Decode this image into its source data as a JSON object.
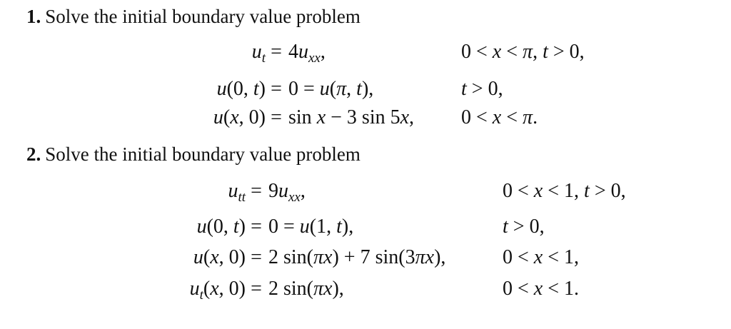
{
  "problems": [
    {
      "number": "1.",
      "title": "Solve the initial boundary value problem",
      "equals": "=",
      "rows": [
        {
          "lhs": [
            {
              "text": "u",
              "style": "i"
            },
            {
              "text": "t",
              "style": "sub"
            }
          ],
          "rhs": [
            {
              "text": "4",
              "style": "r"
            },
            {
              "text": "u",
              "style": "i"
            },
            {
              "text": "xx",
              "style": "sub"
            },
            {
              "text": ",",
              "style": "r"
            }
          ],
          "cond": [
            {
              "text": "0 < ",
              "style": "r"
            },
            {
              "text": "x",
              "style": "i"
            },
            {
              "text": " < ",
              "style": "r"
            },
            {
              "text": "π",
              "style": "i"
            },
            {
              "text": ",  ",
              "style": "r"
            },
            {
              "text": "t",
              "style": "i"
            },
            {
              "text": " > 0,",
              "style": "r"
            }
          ]
        },
        {
          "lhs": [
            {
              "text": "u",
              "style": "i"
            },
            {
              "text": "(0, ",
              "style": "r"
            },
            {
              "text": "t",
              "style": "i"
            },
            {
              "text": ")",
              "style": "r"
            }
          ],
          "rhs": [
            {
              "text": "0 = ",
              "style": "r"
            },
            {
              "text": "u",
              "style": "i"
            },
            {
              "text": "(",
              "style": "r"
            },
            {
              "text": "π",
              "style": "i"
            },
            {
              "text": ", ",
              "style": "r"
            },
            {
              "text": "t",
              "style": "i"
            },
            {
              "text": "),",
              "style": "r"
            }
          ],
          "cond": [
            {
              "text": "t",
              "style": "i"
            },
            {
              "text": " > 0,",
              "style": "r"
            }
          ]
        },
        {
          "lhs": [
            {
              "text": "u",
              "style": "i"
            },
            {
              "text": "(",
              "style": "r"
            },
            {
              "text": "x",
              "style": "i"
            },
            {
              "text": ", 0)",
              "style": "r"
            }
          ],
          "rhs": [
            {
              "text": "sin ",
              "style": "r"
            },
            {
              "text": "x",
              "style": "i"
            },
            {
              "text": " − 3 sin 5",
              "style": "r"
            },
            {
              "text": "x",
              "style": "i"
            },
            {
              "text": ",",
              "style": "r"
            }
          ],
          "cond": [
            {
              "text": "0 < ",
              "style": "r"
            },
            {
              "text": "x",
              "style": "i"
            },
            {
              "text": " < ",
              "style": "r"
            },
            {
              "text": "π",
              "style": "i"
            },
            {
              "text": ".",
              "style": "r"
            }
          ]
        }
      ]
    },
    {
      "number": "2.",
      "title": "Solve the initial boundary value problem",
      "equals": "=",
      "rows": [
        {
          "lhs": [
            {
              "text": "u",
              "style": "i"
            },
            {
              "text": "tt",
              "style": "sub"
            }
          ],
          "rhs": [
            {
              "text": "9",
              "style": "r"
            },
            {
              "text": "u",
              "style": "i"
            },
            {
              "text": "xx",
              "style": "sub"
            },
            {
              "text": ",",
              "style": "r"
            }
          ],
          "cond": [
            {
              "text": "0 < ",
              "style": "r"
            },
            {
              "text": "x",
              "style": "i"
            },
            {
              "text": " < 1,  ",
              "style": "r"
            },
            {
              "text": "t",
              "style": "i"
            },
            {
              "text": " > 0,",
              "style": "r"
            }
          ]
        },
        {
          "lhs": [
            {
              "text": "u",
              "style": "i"
            },
            {
              "text": "(0, ",
              "style": "r"
            },
            {
              "text": "t",
              "style": "i"
            },
            {
              "text": ")",
              "style": "r"
            }
          ],
          "rhs": [
            {
              "text": "0 = ",
              "style": "r"
            },
            {
              "text": "u",
              "style": "i"
            },
            {
              "text": "(1, ",
              "style": "r"
            },
            {
              "text": "t",
              "style": "i"
            },
            {
              "text": "),",
              "style": "r"
            }
          ],
          "cond": [
            {
              "text": "t",
              "style": "i"
            },
            {
              "text": " > 0,",
              "style": "r"
            }
          ]
        },
        {
          "lhs": [
            {
              "text": "u",
              "style": "i"
            },
            {
              "text": "(",
              "style": "r"
            },
            {
              "text": "x",
              "style": "i"
            },
            {
              "text": ", 0)",
              "style": "r"
            }
          ],
          "rhs": [
            {
              "text": "2 sin(",
              "style": "r"
            },
            {
              "text": "πx",
              "style": "i"
            },
            {
              "text": ") + 7 sin(3",
              "style": "r"
            },
            {
              "text": "πx",
              "style": "i"
            },
            {
              "text": "),",
              "style": "r"
            }
          ],
          "cond": [
            {
              "text": "0 < ",
              "style": "r"
            },
            {
              "text": "x",
              "style": "i"
            },
            {
              "text": " < 1,",
              "style": "r"
            }
          ]
        },
        {
          "lhs": [
            {
              "text": "u",
              "style": "i"
            },
            {
              "text": "t",
              "style": "sub"
            },
            {
              "text": "(",
              "style": "r"
            },
            {
              "text": "x",
              "style": "i"
            },
            {
              "text": ", 0)",
              "style": "r"
            }
          ],
          "rhs": [
            {
              "text": "2 sin(",
              "style": "r"
            },
            {
              "text": "πx",
              "style": "i"
            },
            {
              "text": "),",
              "style": "r"
            }
          ],
          "cond": [
            {
              "text": "0 < ",
              "style": "r"
            },
            {
              "text": "x",
              "style": "i"
            },
            {
              "text": " < 1.",
              "style": "r"
            }
          ]
        }
      ]
    }
  ]
}
